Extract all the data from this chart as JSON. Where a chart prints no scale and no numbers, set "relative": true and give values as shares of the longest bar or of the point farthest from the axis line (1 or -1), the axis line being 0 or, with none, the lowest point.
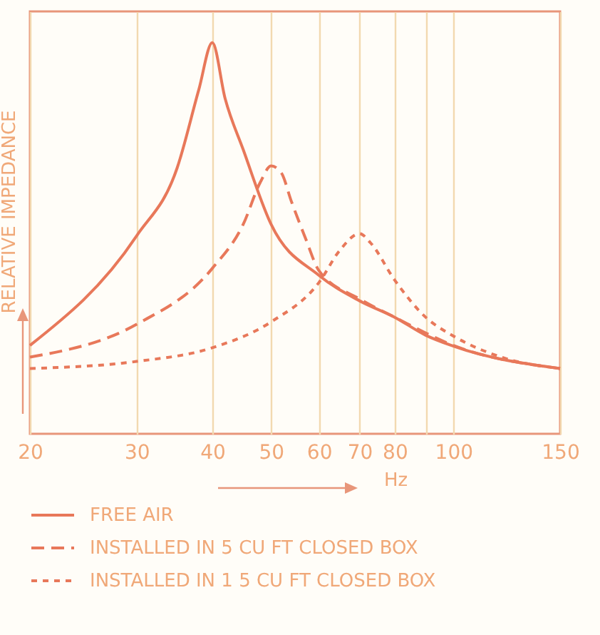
{
  "chart_data": {
    "type": "line",
    "relative": true,
    "xlabel": "Hz",
    "ylabel": "RELATIVE IMPEDANCE",
    "log": "x",
    "grid": "x",
    "legend": "bottom",
    "xlim": [
      20,
      150
    ],
    "xticks": [
      20,
      30,
      40,
      50,
      60,
      70,
      80,
      {
        "value": 90,
        "label": null
      },
      100,
      150
    ],
    "series": [
      {
        "name": "FREE AIR",
        "color": "#e8785a",
        "line_style": "solid",
        "x": [
          20,
          30,
          35,
          38,
          40,
          42,
          45,
          50,
          60,
          70,
          80,
          90,
          100,
          150
        ],
        "values": [
          0.226,
          0.506,
          0.68,
          0.88,
          1.0,
          0.857,
          0.726,
          0.536,
          0.405,
          0.34,
          0.298,
          0.252,
          0.224,
          0.167
        ]
      },
      {
        "name": "INSTALLED IN 5 CU  FT  CLOSED BOX",
        "color": "#e8785a",
        "line_style": "dashed",
        "x": [
          20,
          30,
          40,
          45,
          48,
          50,
          52,
          54,
          57,
          60,
          70,
          80,
          100,
          150
        ],
        "values": [
          0.196,
          0.28,
          0.423,
          0.536,
          0.643,
          0.685,
          0.667,
          0.595,
          0.5,
          0.417,
          0.345,
          0.298,
          0.226,
          0.167
        ]
      },
      {
        "name": "INSTALLED IN 1 5 CU  FT  CLOSED BOX",
        "color": "#e8785a",
        "line_style": "dotted",
        "x": [
          20,
          30,
          40,
          50,
          60,
          65,
          70,
          73,
          80,
          90,
          100,
          120,
          150
        ],
        "values": [
          0.167,
          0.185,
          0.22,
          0.286,
          0.387,
          0.47,
          0.512,
          0.488,
          0.393,
          0.298,
          0.25,
          0.196,
          0.167
        ]
      }
    ]
  }
}
